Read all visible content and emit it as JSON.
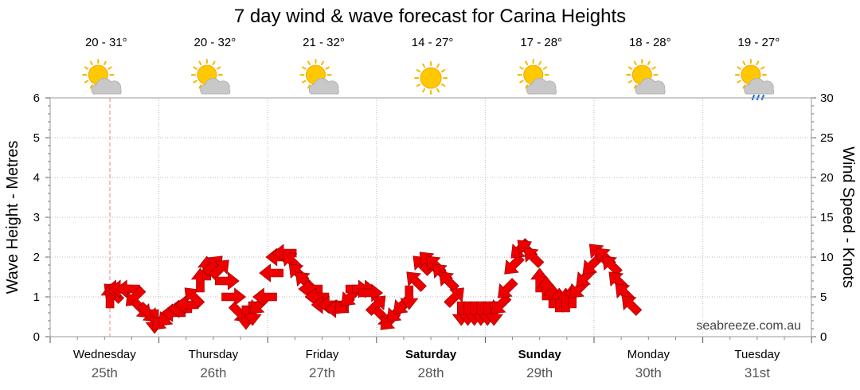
{
  "chart_data": {
    "type": "line",
    "title": "7 day wind & wave forecast for Carina Heights",
    "y_left": {
      "label": "Wave Height - Metres",
      "range": [
        0,
        6
      ],
      "ticks": [
        "0",
        "1",
        "2",
        "3",
        "4",
        "5",
        "6"
      ]
    },
    "y_right": {
      "label": "Wind Speed - Knots",
      "range": [
        0,
        30
      ],
      "ticks": [
        "0",
        "5",
        "10",
        "15",
        "20",
        "25",
        "30"
      ]
    },
    "days": [
      {
        "name": "Wednesday",
        "date": "25th",
        "temp": "20 - 31°",
        "icon": "partly-cloudy-icon",
        "bold": false
      },
      {
        "name": "Thursday",
        "date": "26th",
        "temp": "20 - 32°",
        "icon": "partly-cloudy-icon",
        "bold": false
      },
      {
        "name": "Friday",
        "date": "27th",
        "temp": "21 - 32°",
        "icon": "partly-cloudy-icon",
        "bold": false
      },
      {
        "name": "Saturday",
        "date": "28th",
        "temp": "14 - 27°",
        "icon": "sunny-icon",
        "bold": true
      },
      {
        "name": "Sunday",
        "date": "29th",
        "temp": "17 - 28°",
        "icon": "partly-cloudy-icon",
        "bold": true
      },
      {
        "name": "Monday",
        "date": "30th",
        "temp": "18 - 28°",
        "icon": "partly-cloudy-icon",
        "bold": false
      },
      {
        "name": "Tuesday",
        "date": "31st",
        "temp": "19 - 27°",
        "icon": "showers-icon",
        "bold": false
      }
    ],
    "wind_series": {
      "name": "",
      "unit": "knots",
      "points": [
        {
          "t": 0.55,
          "speed": 5,
          "dir": "S"
        },
        {
          "t": 0.58,
          "speed": 5.5,
          "dir": "SE"
        },
        {
          "t": 0.62,
          "speed": 6,
          "dir": "E"
        },
        {
          "t": 0.66,
          "speed": 6,
          "dir": "E"
        },
        {
          "t": 0.72,
          "speed": 6,
          "dir": "E"
        },
        {
          "t": 0.78,
          "speed": 5,
          "dir": "NE"
        },
        {
          "t": 0.84,
          "speed": 3.5,
          "dir": "NW"
        },
        {
          "t": 0.9,
          "speed": 3,
          "dir": "NW"
        },
        {
          "t": 0.96,
          "speed": 2,
          "dir": "N"
        },
        {
          "t": 1.02,
          "speed": 2,
          "dir": "NE"
        },
        {
          "t": 1.08,
          "speed": 2.5,
          "dir": "NE"
        },
        {
          "t": 1.14,
          "speed": 3,
          "dir": "E"
        },
        {
          "t": 1.2,
          "speed": 3.5,
          "dir": "E"
        },
        {
          "t": 1.26,
          "speed": 4,
          "dir": "E"
        },
        {
          "t": 1.32,
          "speed": 5,
          "dir": "SE"
        },
        {
          "t": 1.38,
          "speed": 7,
          "dir": "S"
        },
        {
          "t": 1.44,
          "speed": 8.5,
          "dir": "S"
        },
        {
          "t": 1.5,
          "speed": 9,
          "dir": "SW"
        },
        {
          "t": 1.56,
          "speed": 8.5,
          "dir": "SW"
        },
        {
          "t": 1.62,
          "speed": 7,
          "dir": "W"
        },
        {
          "t": 1.68,
          "speed": 5,
          "dir": "W"
        },
        {
          "t": 1.74,
          "speed": 3,
          "dir": "NW"
        },
        {
          "t": 1.8,
          "speed": 2.5,
          "dir": "N"
        },
        {
          "t": 1.86,
          "speed": 3,
          "dir": "N"
        },
        {
          "t": 1.92,
          "speed": 4,
          "dir": "NE"
        },
        {
          "t": 1.98,
          "speed": 5,
          "dir": "E"
        },
        {
          "t": 2.04,
          "speed": 8,
          "dir": "E"
        },
        {
          "t": 2.1,
          "speed": 10,
          "dir": "E"
        },
        {
          "t": 2.16,
          "speed": 10.5,
          "dir": "E"
        },
        {
          "t": 2.22,
          "speed": 9.5,
          "dir": "SE"
        },
        {
          "t": 2.28,
          "speed": 8,
          "dir": "SE"
        },
        {
          "t": 2.34,
          "speed": 7,
          "dir": "SE"
        },
        {
          "t": 2.4,
          "speed": 6,
          "dir": "E"
        },
        {
          "t": 2.46,
          "speed": 5,
          "dir": "E"
        },
        {
          "t": 2.52,
          "speed": 4,
          "dir": "E"
        },
        {
          "t": 2.58,
          "speed": 4,
          "dir": "E"
        },
        {
          "t": 2.64,
          "speed": 3.5,
          "dir": "E"
        },
        {
          "t": 2.7,
          "speed": 4,
          "dir": "NE"
        },
        {
          "t": 2.76,
          "speed": 5,
          "dir": "NE"
        },
        {
          "t": 2.82,
          "speed": 6,
          "dir": "W"
        },
        {
          "t": 2.88,
          "speed": 6,
          "dir": "W"
        },
        {
          "t": 2.94,
          "speed": 5.5,
          "dir": "W"
        },
        {
          "t": 3.0,
          "speed": 4,
          "dir": "SW"
        },
        {
          "t": 3.06,
          "speed": 2.5,
          "dir": "NW"
        },
        {
          "t": 3.12,
          "speed": 2,
          "dir": "NE"
        },
        {
          "t": 3.18,
          "speed": 3,
          "dir": "NE"
        },
        {
          "t": 3.24,
          "speed": 4,
          "dir": "NE"
        },
        {
          "t": 3.3,
          "speed": 5,
          "dir": "N"
        },
        {
          "t": 3.36,
          "speed": 7,
          "dir": "SE"
        },
        {
          "t": 3.42,
          "speed": 9,
          "dir": "SE"
        },
        {
          "t": 3.48,
          "speed": 9.5,
          "dir": "SE"
        },
        {
          "t": 3.54,
          "speed": 9,
          "dir": "SE"
        },
        {
          "t": 3.6,
          "speed": 8,
          "dir": "SE"
        },
        {
          "t": 3.66,
          "speed": 7,
          "dir": "SE"
        },
        {
          "t": 3.72,
          "speed": 5,
          "dir": "SW"
        },
        {
          "t": 3.78,
          "speed": 3,
          "dir": "N"
        },
        {
          "t": 3.84,
          "speed": 3,
          "dir": "N"
        },
        {
          "t": 3.9,
          "speed": 3,
          "dir": "N"
        },
        {
          "t": 3.96,
          "speed": 3,
          "dir": "N"
        },
        {
          "t": 4.02,
          "speed": 3,
          "dir": "N"
        },
        {
          "t": 4.08,
          "speed": 3,
          "dir": "N"
        },
        {
          "t": 4.14,
          "speed": 4,
          "dir": "NE"
        },
        {
          "t": 4.2,
          "speed": 6,
          "dir": "NE"
        },
        {
          "t": 4.26,
          "speed": 9,
          "dir": "NE"
        },
        {
          "t": 4.32,
          "speed": 11,
          "dir": "NE"
        },
        {
          "t": 4.38,
          "speed": 11,
          "dir": "SE"
        },
        {
          "t": 4.44,
          "speed": 10,
          "dir": "SE"
        },
        {
          "t": 4.5,
          "speed": 7,
          "dir": "S"
        },
        {
          "t": 4.56,
          "speed": 6,
          "dir": "S"
        },
        {
          "t": 4.62,
          "speed": 5,
          "dir": "S"
        },
        {
          "t": 4.68,
          "speed": 4.5,
          "dir": "S"
        },
        {
          "t": 4.74,
          "speed": 4.5,
          "dir": "S"
        },
        {
          "t": 4.8,
          "speed": 5,
          "dir": "S"
        },
        {
          "t": 4.86,
          "speed": 6,
          "dir": "NE"
        },
        {
          "t": 4.92,
          "speed": 7.5,
          "dir": "NE"
        },
        {
          "t": 4.98,
          "speed": 9,
          "dir": "NE"
        },
        {
          "t": 5.04,
          "speed": 10.5,
          "dir": "SE"
        },
        {
          "t": 5.1,
          "speed": 10,
          "dir": "SE"
        },
        {
          "t": 5.16,
          "speed": 9,
          "dir": "SE"
        },
        {
          "t": 5.22,
          "speed": 7,
          "dir": "SE"
        },
        {
          "t": 5.28,
          "speed": 5.5,
          "dir": "SE"
        },
        {
          "t": 5.34,
          "speed": 4,
          "dir": "SE"
        }
      ]
    },
    "watermark": "seabreeze.com.au"
  }
}
